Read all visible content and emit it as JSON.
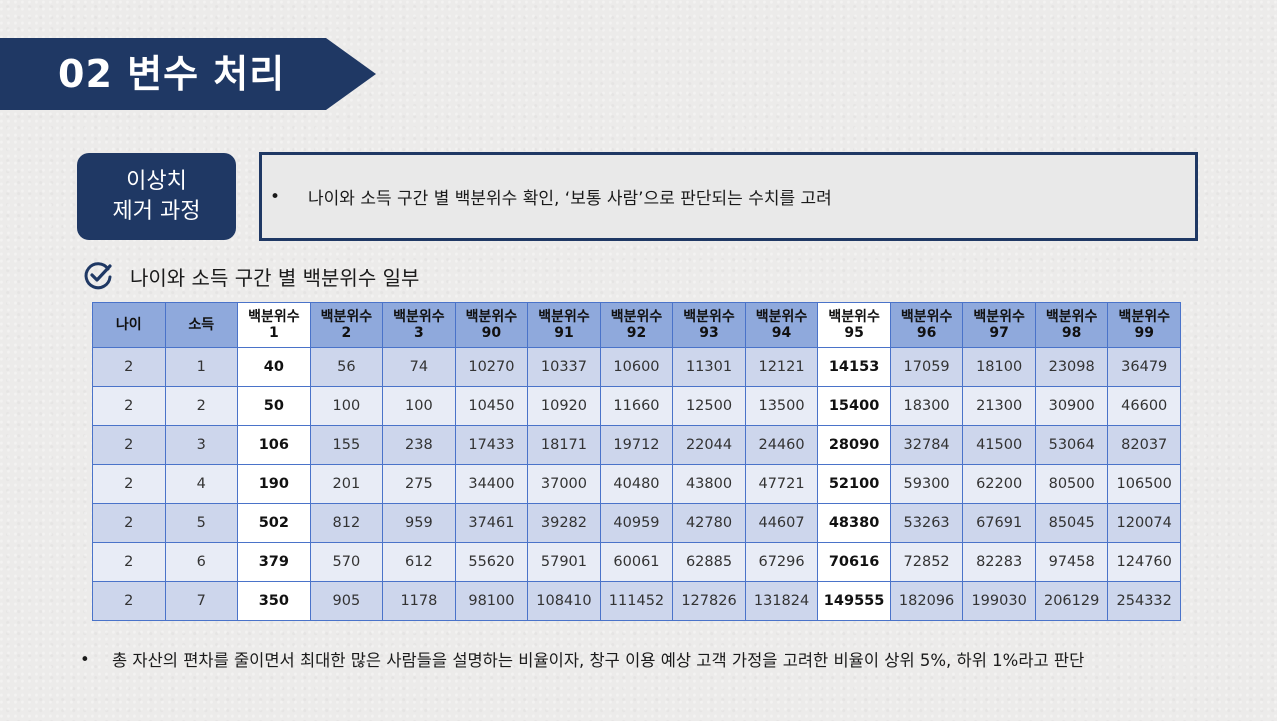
{
  "section": {
    "title": "02  변수 처리"
  },
  "tag": {
    "line1": "이상치",
    "line2": "제거 과정"
  },
  "description": {
    "bullet": "•",
    "text": "나이와 소득 구간 별 백분위수 확인, ‘보통 사람’으로 판단되는 수치를 고려"
  },
  "subheading": {
    "icon": "check-circle-icon",
    "text": "나이와 소득 구간 별 백분위수 일부"
  },
  "table": {
    "headers": [
      [
        "나이"
      ],
      [
        "소득"
      ],
      [
        "백분위수",
        "1"
      ],
      [
        "백분위수",
        "2"
      ],
      [
        "백분위수",
        "3"
      ],
      [
        "백분위수",
        "90"
      ],
      [
        "백분위수",
        "91"
      ],
      [
        "백분위수",
        "92"
      ],
      [
        "백분위수",
        "93"
      ],
      [
        "백분위수",
        "94"
      ],
      [
        "백분위수",
        "95"
      ],
      [
        "백분위수",
        "96"
      ],
      [
        "백분위수",
        "97"
      ],
      [
        "백분위수",
        "98"
      ],
      [
        "백분위수",
        "99"
      ]
    ],
    "highlight_columns": [
      2,
      10
    ],
    "rows": [
      [
        "2",
        "1",
        "40",
        "56",
        "74",
        "10270",
        "10337",
        "10600",
        "11301",
        "12121",
        "14153",
        "17059",
        "18100",
        "23098",
        "36479"
      ],
      [
        "2",
        "2",
        "50",
        "100",
        "100",
        "10450",
        "10920",
        "11660",
        "12500",
        "13500",
        "15400",
        "18300",
        "21300",
        "30900",
        "46600"
      ],
      [
        "2",
        "3",
        "106",
        "155",
        "238",
        "17433",
        "18171",
        "19712",
        "22044",
        "24460",
        "28090",
        "32784",
        "41500",
        "53064",
        "82037"
      ],
      [
        "2",
        "4",
        "190",
        "201",
        "275",
        "34400",
        "37000",
        "40480",
        "43800",
        "47721",
        "52100",
        "59300",
        "62200",
        "80500",
        "106500"
      ],
      [
        "2",
        "5",
        "502",
        "812",
        "959",
        "37461",
        "39282",
        "40959",
        "42780",
        "44607",
        "48380",
        "53263",
        "67691",
        "85045",
        "120074"
      ],
      [
        "2",
        "6",
        "379",
        "570",
        "612",
        "55620",
        "57901",
        "60061",
        "62885",
        "67296",
        "70616",
        "72852",
        "82283",
        "97458",
        "124760"
      ],
      [
        "2",
        "7",
        "350",
        "905",
        "1178",
        "98100",
        "108410",
        "111452",
        "127826",
        "131824",
        "149555",
        "182096",
        "199030",
        "206129",
        "254332"
      ]
    ]
  },
  "footer": {
    "bullet": "•",
    "text": "총 자산의 편차를 줄이면서 최대한 많은 사람들을 설명하는 비율이자, 창구 이용 예상 고객 가정을 고려한 비율이 상위 5%, 하위 1%라고 판단"
  },
  "colors": {
    "navy": "#1f3864",
    "header": "#8fa9dc",
    "row_dark": "#cdd6ec",
    "row_light": "#e8ecf6",
    "border": "#4a73c9"
  }
}
